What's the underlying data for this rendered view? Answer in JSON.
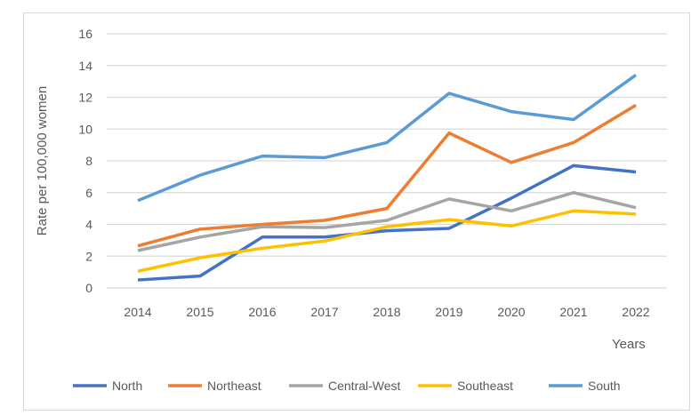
{
  "chart_data": {
    "type": "line",
    "title": "",
    "xlabel": "Years",
    "ylabel": "Rate per 100,000 women",
    "ylim": [
      0,
      16
    ],
    "yticks": [
      0,
      2,
      4,
      6,
      8,
      10,
      12,
      14,
      16
    ],
    "grid": true,
    "legend": "bottom",
    "categories": [
      "2014",
      "2015",
      "2016",
      "2017",
      "2018",
      "2019",
      "2020",
      "2021",
      "2022"
    ],
    "series": [
      {
        "name": "North",
        "color": "#4472C4",
        "values": [
          0.5,
          0.75,
          3.2,
          3.2,
          3.6,
          3.75,
          5.65,
          7.7,
          7.3
        ]
      },
      {
        "name": "Northeast",
        "color": "#ED7D31",
        "values": [
          2.65,
          3.7,
          4.0,
          4.25,
          5.0,
          9.75,
          7.9,
          9.15,
          11.5
        ]
      },
      {
        "name": "Central-West",
        "color": "#A5A5A5",
        "values": [
          2.35,
          3.2,
          3.85,
          3.8,
          4.25,
          5.6,
          4.85,
          6.0,
          5.05
        ]
      },
      {
        "name": "Southeast",
        "color": "#FFC000",
        "values": [
          1.05,
          1.9,
          2.5,
          2.95,
          3.85,
          4.3,
          3.9,
          4.85,
          4.65
        ]
      },
      {
        "name": "South",
        "color": "#5B9BD5",
        "values": [
          5.5,
          7.1,
          8.3,
          8.2,
          9.15,
          12.25,
          11.1,
          10.6,
          13.4
        ]
      }
    ]
  }
}
